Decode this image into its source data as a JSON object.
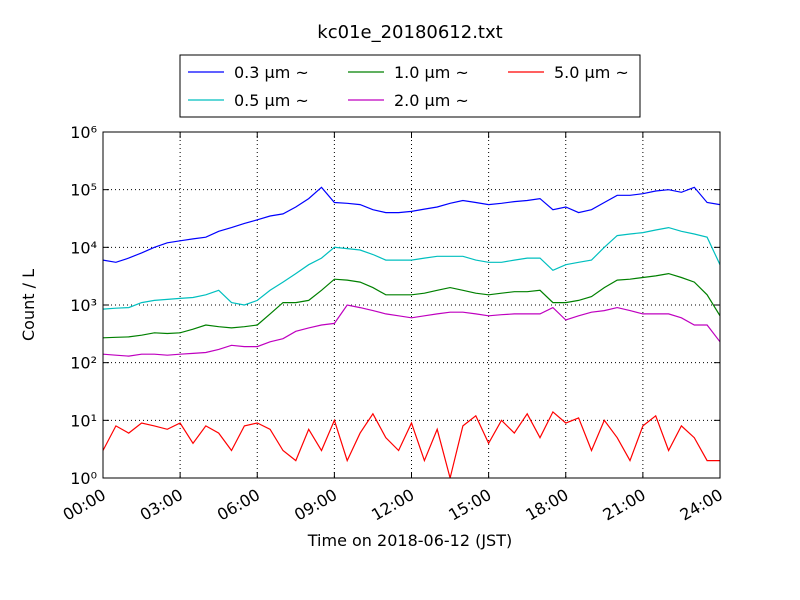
{
  "chart_data": {
    "type": "line",
    "title": "kc01e_20180612.txt",
    "xlabel": "Time on 2018-06-12 (JST)",
    "ylabel": "Count / L",
    "log_y": true,
    "grid": true,
    "legend": "upper center",
    "xlim": [
      "00:00",
      "24:00"
    ],
    "xticks": [
      "00:00",
      "03:00",
      "06:00",
      "09:00",
      "12:00",
      "15:00",
      "18:00",
      "21:00",
      "24:00"
    ],
    "ylim": [
      1,
      1000000
    ],
    "yticks": [
      {
        "value": 1,
        "label": "10⁰"
      },
      {
        "value": 10,
        "label": "10¹"
      },
      {
        "value": 100,
        "label": "10²"
      },
      {
        "value": 1000,
        "label": "10³"
      },
      {
        "value": 10000,
        "label": "10⁴"
      },
      {
        "value": 100000,
        "label": "10⁵"
      },
      {
        "value": 1000000,
        "label": "10⁶"
      }
    ],
    "x": [
      "00:00",
      "00:30",
      "01:00",
      "01:30",
      "02:00",
      "02:30",
      "03:00",
      "03:30",
      "04:00",
      "04:30",
      "05:00",
      "05:30",
      "06:00",
      "06:30",
      "07:00",
      "07:30",
      "08:00",
      "08:30",
      "09:00",
      "09:30",
      "10:00",
      "10:30",
      "11:00",
      "11:30",
      "12:00",
      "12:30",
      "13:00",
      "13:30",
      "14:00",
      "14:30",
      "15:00",
      "15:30",
      "16:00",
      "16:30",
      "17:00",
      "17:30",
      "18:00",
      "18:30",
      "19:00",
      "19:30",
      "20:00",
      "20:30",
      "21:00",
      "21:30",
      "22:00",
      "22:30",
      "23:00",
      "23:30",
      "24:00"
    ],
    "series": [
      {
        "name": "0.3 μm ~",
        "color": "#0000ff",
        "values": [
          6000,
          5500,
          6500,
          8000,
          10000,
          12000,
          13000,
          14000,
          15000,
          19000,
          22000,
          26000,
          30000,
          35000,
          38000,
          50000,
          70000,
          110000,
          60000,
          58000,
          55000,
          45000,
          40000,
          40000,
          42000,
          46000,
          50000,
          58000,
          65000,
          60000,
          55000,
          58000,
          62000,
          65000,
          70000,
          45000,
          50000,
          40000,
          45000,
          60000,
          80000,
          80000,
          85000,
          95000,
          100000,
          90000,
          110000,
          60000,
          55000
        ]
      },
      {
        "name": "0.5 μm ~",
        "color": "#00bfbf",
        "values": [
          850,
          880,
          900,
          1100,
          1200,
          1250,
          1300,
          1350,
          1500,
          1800,
          1100,
          1000,
          1200,
          1800,
          2500,
          3500,
          5000,
          6500,
          10000,
          9500,
          9000,
          7500,
          6000,
          6000,
          6000,
          6500,
          7000,
          7000,
          7000,
          6000,
          5500,
          5500,
          6000,
          6500,
          6500,
          4000,
          5000,
          5500,
          6000,
          10000,
          16000,
          17000,
          18000,
          20000,
          22000,
          19000,
          17000,
          15000,
          5000
        ]
      },
      {
        "name": "1.0 μm ~",
        "color": "#008000",
        "values": [
          270,
          275,
          280,
          300,
          330,
          320,
          330,
          380,
          450,
          420,
          400,
          420,
          450,
          700,
          1100,
          1100,
          1200,
          1800,
          2800,
          2700,
          2500,
          2000,
          1500,
          1500,
          1500,
          1600,
          1800,
          2000,
          1800,
          1600,
          1500,
          1600,
          1700,
          1700,
          1800,
          1100,
          1100,
          1200,
          1400,
          2000,
          2700,
          2800,
          3000,
          3200,
          3500,
          3000,
          2500,
          1500,
          650
        ]
      },
      {
        "name": "2.0 μm ~",
        "color": "#bf00bf",
        "values": [
          140,
          135,
          130,
          140,
          140,
          135,
          140,
          145,
          150,
          170,
          200,
          190,
          190,
          230,
          260,
          350,
          400,
          450,
          480,
          1000,
          900,
          800,
          700,
          650,
          600,
          650,
          700,
          750,
          750,
          700,
          650,
          680,
          700,
          700,
          700,
          900,
          550,
          650,
          750,
          800,
          900,
          800,
          700,
          700,
          700,
          600,
          450,
          450,
          230
        ]
      },
      {
        "name": "5.0 μm ~",
        "color": "#ff0000",
        "values": [
          3,
          8,
          6,
          9,
          8,
          7,
          9,
          4,
          8,
          6,
          3,
          8,
          9,
          7,
          3,
          2,
          7,
          3,
          10,
          2,
          6,
          13,
          5,
          3,
          9,
          2,
          7,
          1,
          8,
          12,
          4,
          10,
          6,
          13,
          5,
          14,
          9,
          11,
          3,
          10,
          5,
          2,
          8,
          12,
          3,
          8,
          5,
          2,
          2
        ]
      }
    ]
  }
}
